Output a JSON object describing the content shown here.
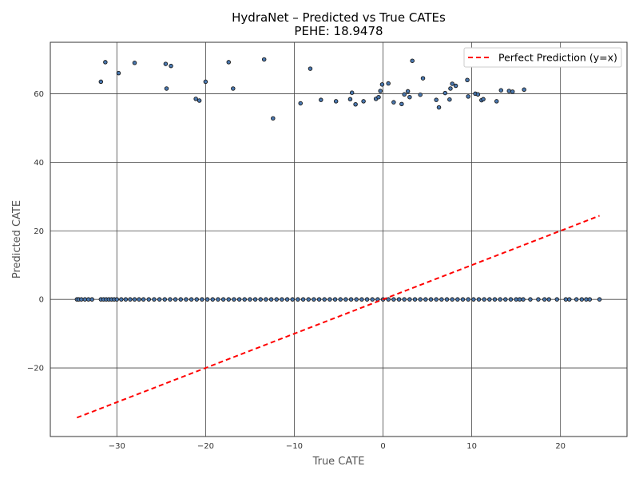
{
  "chart_data": {
    "type": "scatter",
    "title": "HydraNet – Predicted vs True CATEs",
    "subtitle": "PEHE: 18.9478",
    "xlabel": "True CATE",
    "ylabel": "Predicted CATE",
    "xlim": [
      -37.5,
      27.5
    ],
    "ylim": [
      -40.0,
      75.0
    ],
    "xticks": [
      -30,
      -20,
      -10,
      0,
      10,
      20
    ],
    "yticks": [
      -20,
      0,
      20,
      40,
      60
    ],
    "xtick_labels": [
      "−30",
      "−20",
      "−10",
      "0",
      "10",
      "20"
    ],
    "ytick_labels": [
      "−20",
      "0",
      "20",
      "40",
      "60"
    ],
    "grid": true,
    "legend_position": "top-right",
    "point_color": "#4a78b0",
    "point_edge_color": "#1a1a1a",
    "reference_color": "#ff0000",
    "series": [
      {
        "name": "",
        "points": [
          [
            -31.8,
            63.5
          ],
          [
            -31.3,
            69.2
          ],
          [
            -29.8,
            66.0
          ],
          [
            -28.0,
            69.0
          ],
          [
            -24.5,
            68.7
          ],
          [
            -24.4,
            61.5
          ],
          [
            -23.9,
            68.1
          ],
          [
            -21.1,
            58.5
          ],
          [
            -20.7,
            58.0
          ],
          [
            -20.0,
            63.5
          ],
          [
            -17.4,
            69.2
          ],
          [
            -16.9,
            61.5
          ],
          [
            -13.4,
            70.0
          ],
          [
            -12.4,
            52.8
          ],
          [
            -9.3,
            57.2
          ],
          [
            -8.2,
            67.3
          ],
          [
            -7.0,
            58.2
          ],
          [
            -5.3,
            57.8
          ],
          [
            -3.7,
            58.4
          ],
          [
            -3.5,
            60.3
          ],
          [
            -3.1,
            56.9
          ],
          [
            -2.2,
            57.8
          ],
          [
            -0.8,
            58.5
          ],
          [
            -0.5,
            59.0
          ],
          [
            -0.3,
            60.8
          ],
          [
            -0.1,
            62.7
          ],
          [
            0.6,
            63.0
          ],
          [
            1.2,
            57.5
          ],
          [
            2.1,
            57.0
          ],
          [
            2.4,
            59.8
          ],
          [
            2.8,
            60.7
          ],
          [
            3.0,
            59.0
          ],
          [
            3.3,
            69.6
          ],
          [
            4.2,
            59.7
          ],
          [
            4.5,
            64.5
          ],
          [
            6.0,
            58.2
          ],
          [
            6.3,
            56.0
          ],
          [
            7.0,
            60.2
          ],
          [
            7.5,
            58.3
          ],
          [
            7.6,
            61.5
          ],
          [
            7.8,
            62.9
          ],
          [
            8.2,
            62.3
          ],
          [
            9.5,
            64.0
          ],
          [
            9.6,
            59.2
          ],
          [
            10.4,
            60.0
          ],
          [
            10.7,
            59.8
          ],
          [
            11.1,
            58.1
          ],
          [
            11.3,
            58.4
          ],
          [
            12.8,
            57.8
          ],
          [
            13.3,
            61.0
          ],
          [
            14.2,
            60.8
          ],
          [
            14.6,
            60.6
          ],
          [
            15.9,
            61.2
          ]
        ],
        "zero_prediction_x": [
          -34.5,
          -34.3,
          -34.0,
          -33.6,
          -33.2,
          -32.8,
          -31.8,
          -31.5,
          -31.2,
          -30.9,
          -30.6,
          -30.3,
          -30.0,
          -29.5,
          -29.0,
          -28.5,
          -28.0,
          -27.5,
          -27.0,
          -26.4,
          -25.8,
          -25.2,
          -24.6,
          -24.0,
          -23.4,
          -22.8,
          -22.2,
          -21.6,
          -21.0,
          -20.4,
          -19.8,
          -19.2,
          -18.6,
          -18.0,
          -17.4,
          -16.8,
          -16.2,
          -15.6,
          -15.0,
          -14.4,
          -13.8,
          -13.2,
          -12.6,
          -12.0,
          -11.4,
          -10.8,
          -10.2,
          -9.6,
          -9.0,
          -8.4,
          -7.8,
          -7.2,
          -6.6,
          -6.0,
          -5.4,
          -4.8,
          -4.2,
          -3.6,
          -3.0,
          -2.4,
          -1.8,
          -1.2,
          -0.6,
          0.0,
          0.6,
          1.2,
          1.8,
          2.4,
          3.0,
          3.6,
          4.2,
          4.8,
          5.4,
          6.0,
          6.6,
          7.2,
          7.8,
          8.4,
          9.0,
          9.6,
          10.2,
          10.8,
          11.4,
          12.0,
          12.6,
          13.2,
          13.8,
          14.4,
          15.0,
          15.4,
          15.8,
          16.6,
          17.5,
          18.2,
          18.7,
          19.6,
          20.6,
          21.0,
          21.8,
          22.4,
          22.9,
          23.3,
          24.4
        ],
        "zero_prediction_y": 0
      },
      {
        "name": "Perfect Prediction (y=x)",
        "type": "line",
        "style": "dashed",
        "x": [
          -34.5,
          24.4
        ],
        "y": [
          -34.5,
          24.4
        ]
      }
    ]
  }
}
